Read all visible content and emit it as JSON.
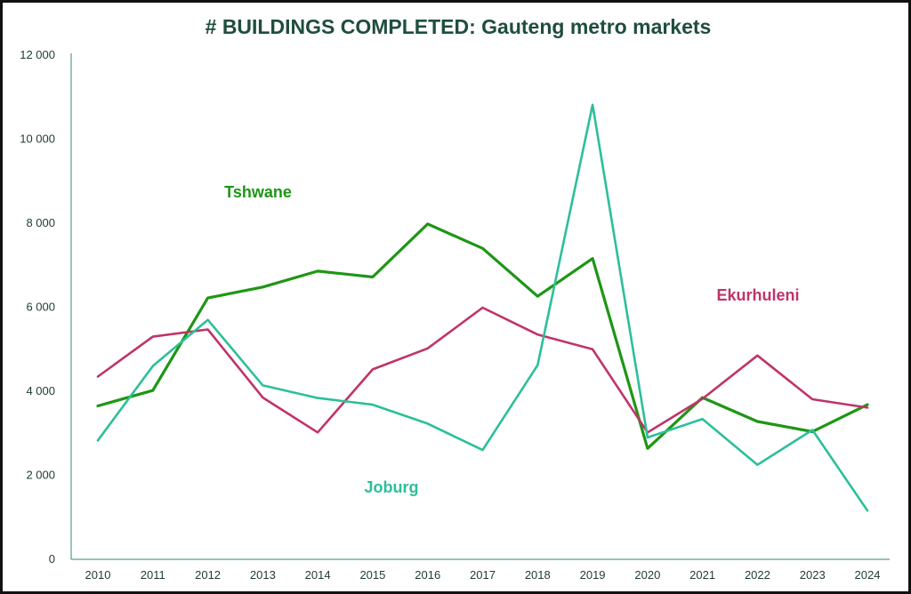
{
  "chart_data": {
    "type": "line",
    "title": "# BUILDINGS COMPLETED: Gauteng metro markets",
    "xlabel": "",
    "ylabel": "",
    "categories": [
      "2010",
      "2011",
      "2012",
      "2013",
      "2014",
      "2015",
      "2016",
      "2017",
      "2018",
      "2019",
      "2020",
      "2021",
      "2022",
      "2023",
      "2024"
    ],
    "ylim": [
      0,
      12000
    ],
    "yticks": [
      0,
      2000,
      4000,
      6000,
      8000,
      10000,
      12000
    ],
    "ytick_labels": [
      "0",
      "2 000",
      "4 000",
      "6 000",
      "8 000",
      "10 000",
      "12 000"
    ],
    "grid": false,
    "legend": "inline labels",
    "series": [
      {
        "name": "Tshwane",
        "color": "#1e9614",
        "values": [
          3650,
          4020,
          6220,
          6480,
          6860,
          6720,
          7980,
          7400,
          6260,
          7160,
          2640,
          3850,
          3280,
          3040,
          3680
        ]
      },
      {
        "name": "Ekurhuleni",
        "color": "#c0336a",
        "values": [
          4350,
          5300,
          5470,
          3850,
          3020,
          4520,
          5020,
          5990,
          5350,
          5000,
          3020,
          3820,
          4850,
          3810,
          3610
        ]
      },
      {
        "name": "Joburg",
        "color": "#2cbf9a",
        "values": [
          2830,
          4600,
          5700,
          4140,
          3840,
          3680,
          3230,
          2600,
          4620,
          10820,
          2900,
          3340,
          2250,
          3080,
          1160
        ]
      }
    ]
  }
}
